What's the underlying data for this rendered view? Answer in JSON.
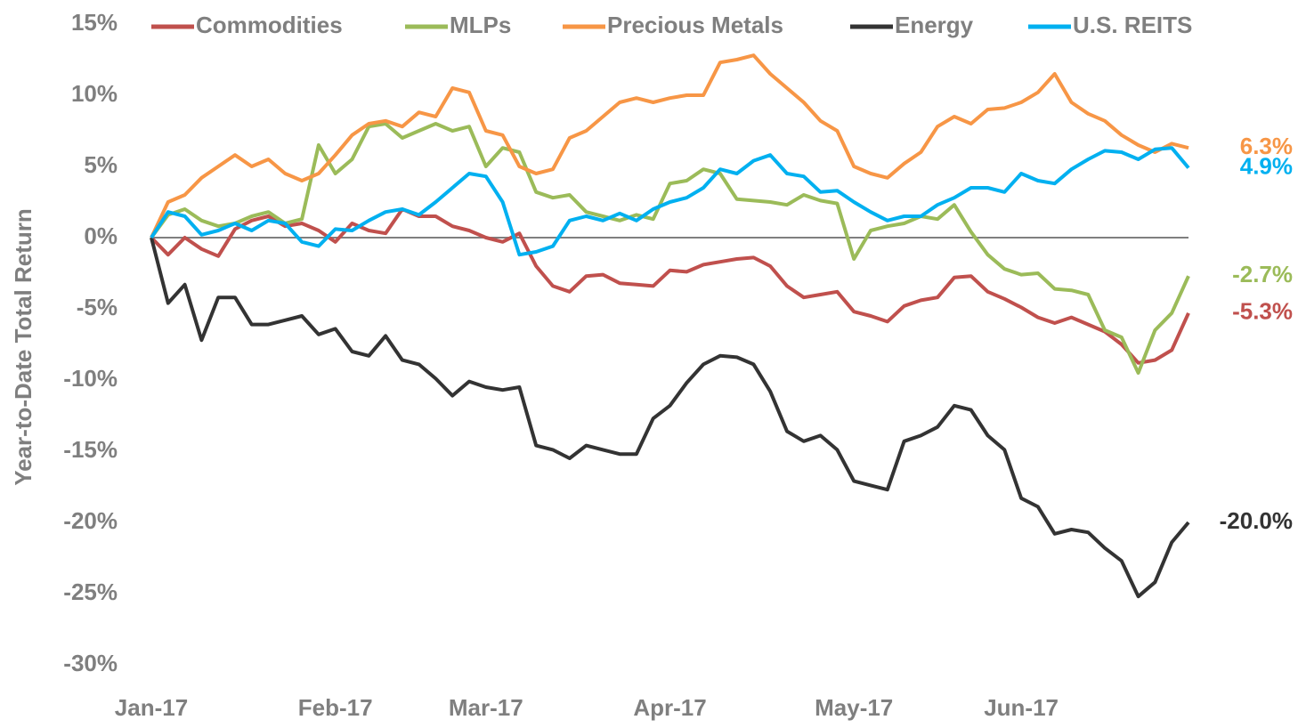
{
  "chart_data": {
    "type": "line",
    "y_label": "Year-to-Date  Total Return",
    "categories": [
      "Jan-17",
      null,
      null,
      null,
      null,
      null,
      null,
      null,
      null,
      null,
      null,
      "Feb-17",
      null,
      null,
      null,
      null,
      null,
      null,
      null,
      null,
      "Mar-17",
      null,
      null,
      null,
      null,
      null,
      null,
      null,
      null,
      null,
      null,
      "Apr-17",
      null,
      null,
      null,
      null,
      null,
      null,
      null,
      null,
      null,
      null,
      "May-17",
      null,
      null,
      null,
      null,
      null,
      null,
      null,
      null,
      null,
      "Jun-17",
      null,
      null,
      null,
      null,
      null,
      null,
      null,
      null,
      null,
      null
    ],
    "ylim": [
      -30,
      15
    ],
    "yticks": [
      {
        "value": -30,
        "label": "-30%"
      },
      {
        "value": -25,
        "label": "-25%"
      },
      {
        "value": -20,
        "label": "-20%"
      },
      {
        "value": -15,
        "label": "-15%"
      },
      {
        "value": -10,
        "label": "-10%"
      },
      {
        "value": -5,
        "label": "-5%"
      },
      {
        "value": 0,
        "label": "0%"
      },
      {
        "value": 5,
        "label": "5%"
      },
      {
        "value": 10,
        "label": "10%"
      },
      {
        "value": 15,
        "label": "15%"
      }
    ],
    "legend": "top",
    "series": [
      {
        "name": "Commodities",
        "color": "#c0504d",
        "end_label": "-5.3%",
        "values": [
          0,
          -1.2,
          0,
          -0.8,
          -1.3,
          0.6,
          1.2,
          1.5,
          0.8,
          1.0,
          0.5,
          -0.3,
          1.0,
          0.5,
          0.3,
          2.0,
          1.5,
          1.5,
          0.8,
          0.5,
          0,
          -0.3,
          0.3,
          -2,
          -3.4,
          -3.8,
          -2.7,
          -2.6,
          -3.2,
          -3.3,
          -3.4,
          -2.3,
          -2.4,
          -1.9,
          -1.7,
          -1.5,
          -1.4,
          -2,
          -3.4,
          -4.2,
          -4,
          -3.8,
          -5.2,
          -5.5,
          -5.9,
          -4.8,
          -4.4,
          -4.2,
          -2.8,
          -2.7,
          -3.8,
          -4.3,
          -4.9,
          -5.6,
          -6,
          -5.6,
          -6.1,
          -6.6,
          -7.5,
          -8.8,
          -8.6,
          -7.9,
          -5.3
        ]
      },
      {
        "name": "MLPs",
        "color": "#9bbb59",
        "end_label": "-2.7%",
        "values": [
          0,
          1.6,
          2.0,
          1.2,
          0.8,
          1,
          1.5,
          1.8,
          1,
          1.3,
          6.5,
          4.5,
          5.5,
          7.8,
          8,
          7,
          7.5,
          8,
          7.5,
          7.8,
          5,
          6.3,
          6,
          3.2,
          2.8,
          3.0,
          1.8,
          1.5,
          1.2,
          1.6,
          1.3,
          3.8,
          4,
          4.8,
          4.5,
          2.7,
          2.6,
          2.5,
          2.3,
          3,
          2.6,
          2.4,
          -1.5,
          0.5,
          0.8,
          1,
          1.5,
          1.3,
          2.3,
          0.4,
          -1.2,
          -2.2,
          -2.6,
          -2.5,
          -3.6,
          -3.7,
          -4,
          -6.5,
          -7,
          -9.5,
          -6.5,
          -5.3,
          -2.7
        ]
      },
      {
        "name": "Precious Metals",
        "color": "#f79646",
        "end_label": "6.3%",
        "values": [
          0,
          2.5,
          3,
          4.2,
          5,
          5.8,
          5,
          5.5,
          4.5,
          4,
          4.5,
          5.8,
          7.2,
          8,
          8.2,
          7.8,
          8.8,
          8.5,
          10.5,
          10.2,
          7.5,
          7.2,
          5,
          4.5,
          4.8,
          7,
          7.5,
          8.5,
          9.5,
          9.8,
          9.5,
          9.8,
          10,
          10,
          12.3,
          12.5,
          12.8,
          11.5,
          10.5,
          9.5,
          8.2,
          7.5,
          5,
          4.5,
          4.2,
          5.2,
          6,
          7.8,
          8.5,
          8,
          9,
          9.1,
          9.5,
          10.2,
          11.5,
          9.5,
          8.7,
          8.2,
          7.2,
          6.5,
          6,
          6.6,
          6.3
        ]
      },
      {
        "name": "Energy",
        "color": "#333333",
        "end_label": "-20.0%",
        "values": [
          0,
          -4.6,
          -3.3,
          -7.2,
          -4.2,
          -4.2,
          -6.1,
          -6.1,
          -5.8,
          -5.5,
          -6.8,
          -6.4,
          -8,
          -8.3,
          -6.9,
          -8.6,
          -8.9,
          -9.9,
          -11.1,
          -10.1,
          -10.5,
          -10.7,
          -10.5,
          -14.6,
          -14.9,
          -15.5,
          -14.6,
          -14.9,
          -15.2,
          -15.2,
          -12.7,
          -11.8,
          -10.2,
          -8.9,
          -8.3,
          -8.4,
          -8.9,
          -10.8,
          -13.6,
          -14.3,
          -13.9,
          -14.9,
          -17.1,
          -17.4,
          -17.7,
          -14.3,
          -13.9,
          -13.3,
          -11.8,
          -12.1,
          -13.9,
          -14.9,
          -18.3,
          -18.9,
          -20.8,
          -20.5,
          -20.7,
          -21.8,
          -22.7,
          -25.2,
          -24.2,
          -21.4,
          -20.0
        ]
      },
      {
        "name": "U.S. REITS",
        "color": "#00b0f0",
        "end_label": "4.9%",
        "values": [
          0,
          1.8,
          1.5,
          0.2,
          0.5,
          1,
          0.5,
          1.2,
          1,
          -0.3,
          -0.6,
          0.6,
          0.5,
          1.2,
          1.8,
          2,
          1.6,
          2.5,
          3.5,
          4.5,
          4.3,
          2.5,
          -1.2,
          -1,
          -0.6,
          1.2,
          1.5,
          1.2,
          1.7,
          1.2,
          2,
          2.5,
          2.8,
          3.5,
          4.8,
          4.5,
          5.4,
          5.8,
          4.5,
          4.3,
          3.2,
          3.3,
          2.5,
          1.8,
          1.2,
          1.5,
          1.5,
          2.3,
          2.8,
          3.5,
          3.5,
          3.2,
          4.5,
          4,
          3.8,
          4.8,
          5.5,
          6.1,
          6,
          5.5,
          6.2,
          6.3,
          4.9
        ]
      }
    ]
  }
}
